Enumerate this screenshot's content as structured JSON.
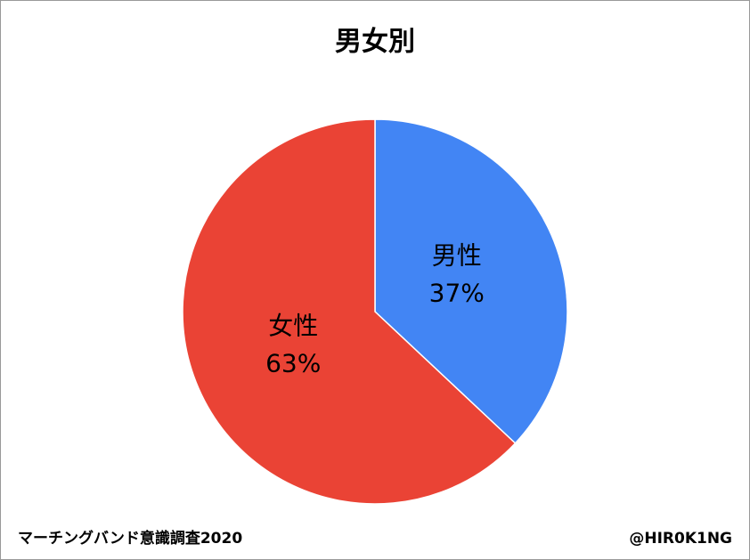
{
  "chart_data": {
    "type": "pie",
    "title": "男女別",
    "categories": [
      "男性",
      "女性"
    ],
    "values": [
      37,
      63
    ],
    "value_labels": [
      "37%",
      "63%"
    ],
    "colors": [
      "#4285f4",
      "#ea4335"
    ],
    "source": "マーチングバンド意識調査2020",
    "credit": "@HIR0K1NG"
  }
}
